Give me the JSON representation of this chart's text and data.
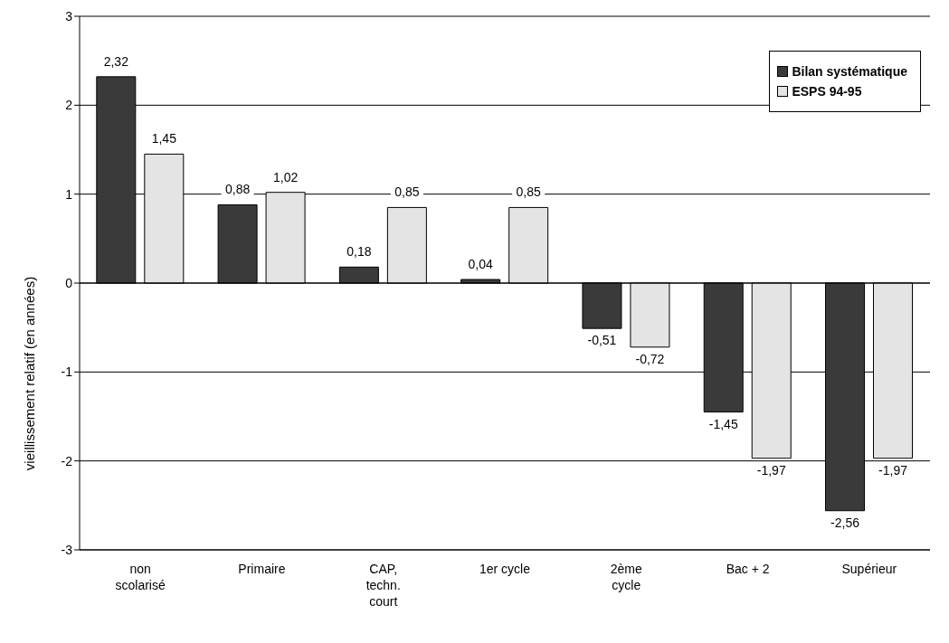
{
  "chart_data": {
    "type": "bar",
    "ylabel": "vieillissement relatif (en années)",
    "categories": [
      "non scolarisé",
      "Primaire",
      "CAP, techn. court",
      "1er cycle",
      "2ème cycle",
      "Bac + 2",
      "Supérieur"
    ],
    "series": [
      {
        "name": "Bilan systématique",
        "color": "#3a3a3a",
        "values": [
          2.32,
          0.88,
          0.18,
          0.04,
          -0.51,
          -1.45,
          -2.56
        ],
        "value_labels": [
          "2,32",
          "0,88",
          "0,18",
          "0,04",
          "-0,51",
          "-1,45",
          "-2,56"
        ]
      },
      {
        "name": "ESPS 94-95",
        "color": "#e4e4e4",
        "values": [
          1.45,
          1.02,
          0.85,
          0.85,
          -0.72,
          -1.97,
          -1.97
        ],
        "value_labels": [
          "1,45",
          "1,02",
          "0,85",
          "0,85",
          "-0,72",
          "-1,97",
          "-1,97"
        ]
      }
    ],
    "ylim": [
      -3,
      3
    ],
    "yticks": [
      -3,
      -2,
      -1,
      0,
      1,
      2,
      3
    ],
    "grid": "y",
    "legend": "top right"
  }
}
